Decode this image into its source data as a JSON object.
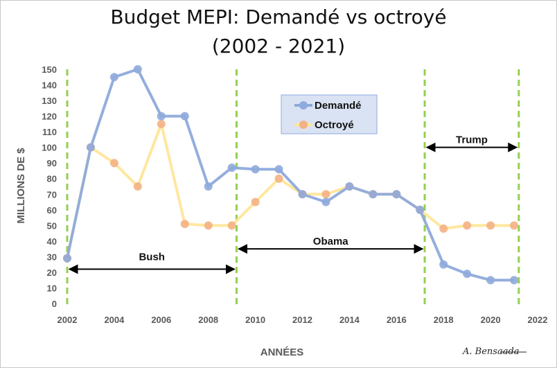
{
  "chart_data": {
    "type": "line",
    "title_line1": "Budget MEPI: Demandé vs octroyé",
    "title_line2": "(2002 - 2021)",
    "xlabel": "ANNÉES",
    "ylabel": "MILLIONS DE $",
    "xlim": [
      2002,
      2022
    ],
    "ylim": [
      0,
      150
    ],
    "x_ticks": [
      2002,
      2004,
      2006,
      2008,
      2010,
      2012,
      2014,
      2016,
      2018,
      2020,
      2022
    ],
    "y_ticks": [
      0,
      10,
      20,
      30,
      40,
      50,
      60,
      70,
      80,
      90,
      100,
      110,
      120,
      130,
      140,
      150
    ],
    "grid": false,
    "legend_position": "top-center",
    "x": [
      2002,
      2003,
      2004,
      2005,
      2006,
      2007,
      2008,
      2009,
      2010,
      2011,
      2012,
      2013,
      2014,
      2015,
      2016,
      2017,
      2018,
      2019,
      2020,
      2021
    ],
    "series": [
      {
        "name": "Demandé",
        "color": "#8eaadb",
        "marker_color": "#8faadc",
        "values": [
          29,
          100,
          145,
          150,
          120,
          120,
          75,
          87,
          86,
          86,
          70,
          65,
          75,
          70,
          70,
          60,
          25,
          19,
          15,
          15
        ]
      },
      {
        "name": "Octroyé",
        "color": "#ffe699",
        "marker_color": "#f4b183",
        "values": [
          29,
          100,
          90,
          75,
          115,
          51,
          50,
          50,
          65,
          80,
          70,
          70,
          75,
          70,
          70,
          60,
          48,
          50,
          50,
          50
        ]
      }
    ],
    "vertical_lines": {
      "x_values": [
        2002,
        2009.2,
        2017.2,
        2021.2
      ],
      "color": "#92d050"
    },
    "annotations": [
      {
        "label": "Bush",
        "x_start": 2002,
        "x_end": 2009.2,
        "y": 22,
        "label_y": 30
      },
      {
        "label": "Obama",
        "x_start": 2009.2,
        "x_end": 2017.2,
        "y": 35,
        "label_y": 40
      },
      {
        "label": "Trump",
        "x_start": 2017.2,
        "x_end": 2021.2,
        "y": 100,
        "label_y": 105
      }
    ],
    "signature": "A. Bensaada"
  }
}
